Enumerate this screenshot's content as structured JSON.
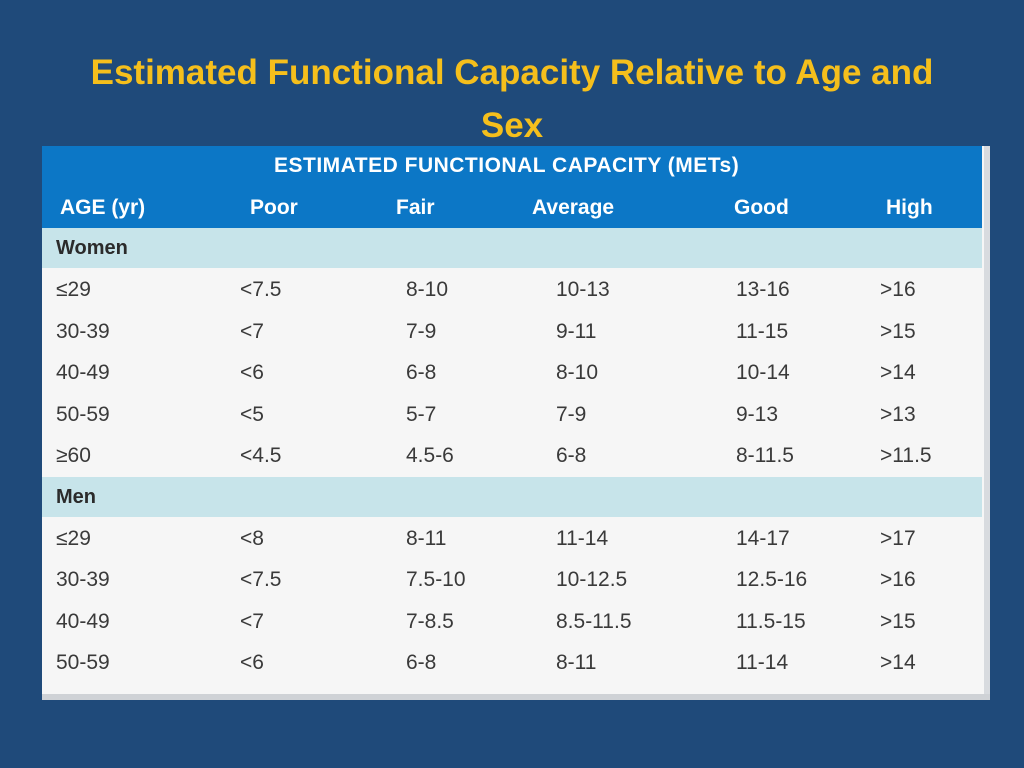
{
  "title": "Estimated Functional Capacity Relative to Age and Sex",
  "table": {
    "group_header": "ESTIMATED FUNCTIONAL CAPACITY (METs)",
    "columns": [
      "AGE (yr)",
      "Poor",
      "Fair",
      "Average",
      "Good",
      "High"
    ],
    "sections": [
      {
        "label": "Women",
        "rows": [
          [
            "≤29",
            "<7.5",
            "8-10",
            "10-13",
            "13-16",
            ">16"
          ],
          [
            "30-39",
            "<7",
            "7-9",
            "9-11",
            "11-15",
            ">15"
          ],
          [
            "40-49",
            "<6",
            "6-8",
            "8-10",
            "10-14",
            ">14"
          ],
          [
            "50-59",
            "<5",
            "5-7",
            "7-9",
            "9-13",
            ">13"
          ],
          [
            "≥60",
            "<4.5",
            "4.5-6",
            "6-8",
            "8-11.5",
            ">11.5"
          ]
        ]
      },
      {
        "label": "Men",
        "rows": [
          [
            "≤29",
            "<8",
            "8-11",
            "11-14",
            "14-17",
            ">17"
          ],
          [
            "30-39",
            "<7.5",
            "7.5-10",
            "10-12.5",
            "12.5-16",
            ">16"
          ],
          [
            "40-49",
            "<7",
            "7-8.5",
            "8.5-11.5",
            "11.5-15",
            ">15"
          ],
          [
            "50-59",
            "<6",
            "6-8",
            "8-11",
            "11-14",
            ">14"
          ]
        ]
      }
    ]
  },
  "colors": {
    "background": "#1f4a7a",
    "title": "#f5bf1c",
    "header": "#0c77c6",
    "section_band": "#c7e4ea",
    "table_body": "#f6f6f6"
  }
}
